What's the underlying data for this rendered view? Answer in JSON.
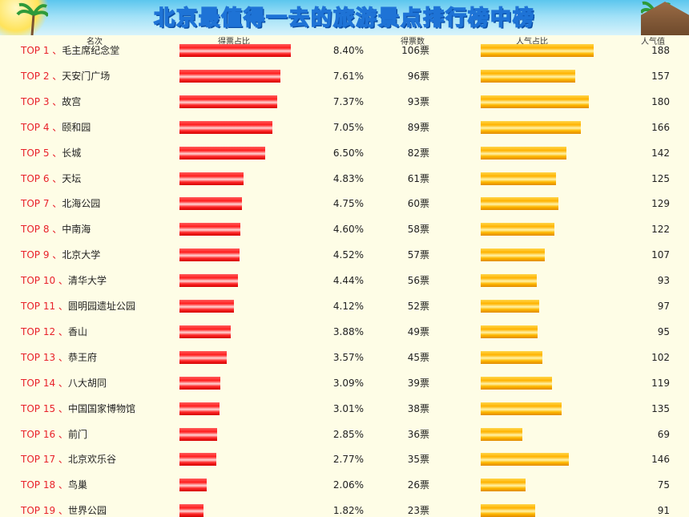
{
  "title": "北京最值得一去的旅游景点排行榜中榜",
  "headers": {
    "rank": "名次",
    "vote_share": "得票占比",
    "votes": "得票数",
    "popularity_share": "人气占比",
    "popularity": "人气值"
  },
  "colors": {
    "vote_bar": "#ff1f1f",
    "popularity_bar": "#ffb300",
    "rank_text": "#e8222a",
    "background": "#fefde6"
  },
  "chart_data": {
    "type": "table",
    "columns": [
      "名次",
      "得票占比",
      "得票数",
      "人气占比",
      "人气值"
    ],
    "rows": [
      {
        "rank": "TOP 1",
        "name": "毛主席纪念堂",
        "share": 8.4,
        "share_label": "8.40%",
        "votes": 106,
        "votes_label": "106票",
        "popularity": 188
      },
      {
        "rank": "TOP 2",
        "name": "天安门广场",
        "share": 7.61,
        "share_label": "7.61%",
        "votes": 96,
        "votes_label": "96票",
        "popularity": 157
      },
      {
        "rank": "TOP 3",
        "name": "故宫",
        "share": 7.37,
        "share_label": "7.37%",
        "votes": 93,
        "votes_label": "93票",
        "popularity": 180
      },
      {
        "rank": "TOP 4",
        "name": "颐和园",
        "share": 7.05,
        "share_label": "7.05%",
        "votes": 89,
        "votes_label": "89票",
        "popularity": 166
      },
      {
        "rank": "TOP 5",
        "name": "长城",
        "share": 6.5,
        "share_label": "6.50%",
        "votes": 82,
        "votes_label": "82票",
        "popularity": 142
      },
      {
        "rank": "TOP 6",
        "name": "天坛",
        "share": 4.83,
        "share_label": "4.83%",
        "votes": 61,
        "votes_label": "61票",
        "popularity": 125
      },
      {
        "rank": "TOP 7",
        "name": "北海公园",
        "share": 4.75,
        "share_label": "4.75%",
        "votes": 60,
        "votes_label": "60票",
        "popularity": 129
      },
      {
        "rank": "TOP 8",
        "name": "中南海",
        "share": 4.6,
        "share_label": "4.60%",
        "votes": 58,
        "votes_label": "58票",
        "popularity": 122
      },
      {
        "rank": "TOP 9",
        "name": "北京大学",
        "share": 4.52,
        "share_label": "4.52%",
        "votes": 57,
        "votes_label": "57票",
        "popularity": 107
      },
      {
        "rank": "TOP 10",
        "name": "清华大学",
        "share": 4.44,
        "share_label": "4.44%",
        "votes": 56,
        "votes_label": "56票",
        "popularity": 93
      },
      {
        "rank": "TOP 11",
        "name": "圆明园遗址公园",
        "share": 4.12,
        "share_label": "4.12%",
        "votes": 52,
        "votes_label": "52票",
        "popularity": 97
      },
      {
        "rank": "TOP 12",
        "name": "香山",
        "share": 3.88,
        "share_label": "3.88%",
        "votes": 49,
        "votes_label": "49票",
        "popularity": 95
      },
      {
        "rank": "TOP 13",
        "name": "恭王府",
        "share": 3.57,
        "share_label": "3.57%",
        "votes": 45,
        "votes_label": "45票",
        "popularity": 102
      },
      {
        "rank": "TOP 14",
        "name": "八大胡同",
        "share": 3.09,
        "share_label": "3.09%",
        "votes": 39,
        "votes_label": "39票",
        "popularity": 119
      },
      {
        "rank": "TOP 15",
        "name": "中国国家博物馆",
        "share": 3.01,
        "share_label": "3.01%",
        "votes": 38,
        "votes_label": "38票",
        "popularity": 135
      },
      {
        "rank": "TOP 16",
        "name": "前门",
        "share": 2.85,
        "share_label": "2.85%",
        "votes": 36,
        "votes_label": "36票",
        "popularity": 69
      },
      {
        "rank": "TOP 17",
        "name": "北京欢乐谷",
        "share": 2.77,
        "share_label": "2.77%",
        "votes": 35,
        "votes_label": "35票",
        "popularity": 146
      },
      {
        "rank": "TOP 18",
        "name": "鸟巢",
        "share": 2.06,
        "share_label": "2.06%",
        "votes": 26,
        "votes_label": "26票",
        "popularity": 75
      },
      {
        "rank": "TOP 19",
        "name": "世界公园",
        "share": 1.82,
        "share_label": "1.82%",
        "votes": 23,
        "votes_label": "23票",
        "popularity": 91
      }
    ]
  }
}
